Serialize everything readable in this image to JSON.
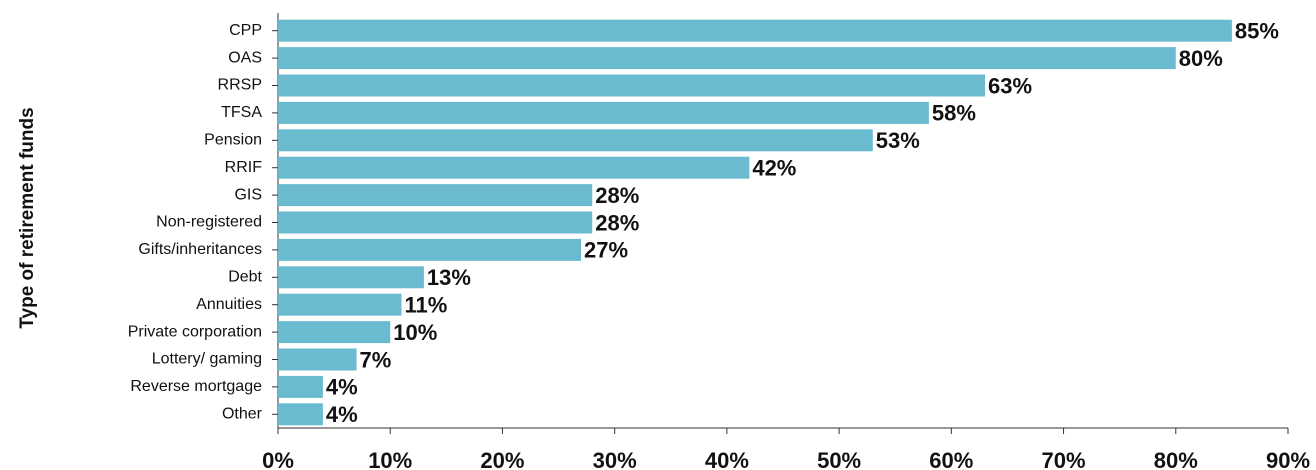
{
  "chart_data": {
    "type": "barh",
    "y_label": "Type of retirement funds",
    "categories": [
      "CPP",
      "OAS",
      "RRSP",
      "TFSA",
      "Pension",
      "RRIF",
      "GIS",
      "Non-registered",
      "Gifts/inheritances",
      "Debt",
      "Annuities",
      "Private corporation",
      "Lottery/ gaming",
      "Reverse mortgage",
      "Other"
    ],
    "values": [
      85,
      80,
      63,
      58,
      53,
      42,
      28,
      28,
      27,
      13,
      11,
      10,
      7,
      4,
      4
    ],
    "value_labels": [
      "85%",
      "80%",
      "63%",
      "58%",
      "53%",
      "42%",
      "28%",
      "28%",
      "27%",
      "13%",
      "11%",
      "10%",
      "7%",
      "4%",
      "4%"
    ],
    "color": "#6bbbd0",
    "xlim": [
      0,
      90
    ],
    "xticks": [
      {
        "value": 0,
        "label": "0%"
      },
      {
        "value": 10,
        "label": "10%"
      },
      {
        "value": 20,
        "label": "20%"
      },
      {
        "value": 30,
        "label": "30%"
      },
      {
        "value": 40,
        "label": "40%"
      },
      {
        "value": 50,
        "label": "50%"
      },
      {
        "value": 60,
        "label": "60%"
      },
      {
        "value": 70,
        "label": "70%"
      },
      {
        "value": 80,
        "label": "80%"
      },
      {
        "value": 90,
        "label": "90%"
      }
    ]
  }
}
